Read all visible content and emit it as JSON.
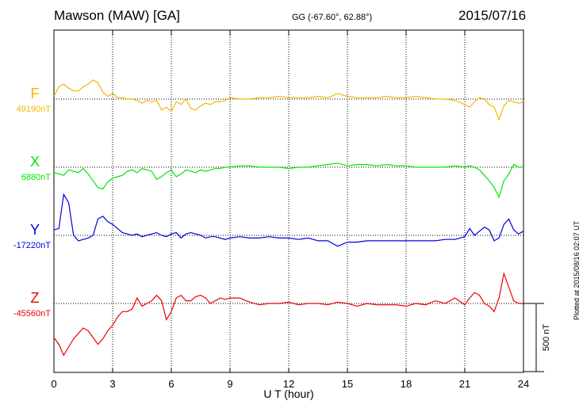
{
  "header": {
    "station": "Mawson (MAW)  [GA]",
    "coordinates": "GG (-67.60°,  62.88°)",
    "date": "2015/07/16"
  },
  "footer": {
    "plotted": "Plotted at 2015/08/16 02:07 UT"
  },
  "chart_data": {
    "type": "line",
    "title": "Mawson (MAW)  [GA]",
    "xlabel": "U T (hour)",
    "xlim": [
      0,
      24
    ],
    "x_ticks": [
      "0",
      "3",
      "6",
      "9",
      "12",
      "15",
      "18",
      "21",
      "24"
    ],
    "grid": true,
    "scale_bar": {
      "label": "500 nT",
      "value_nT": 500
    },
    "x": [
      0,
      0.25,
      0.5,
      0.75,
      1,
      1.25,
      1.5,
      1.75,
      2,
      2.25,
      2.5,
      2.75,
      3,
      3.25,
      3.5,
      3.75,
      4,
      4.25,
      4.5,
      4.75,
      5,
      5.25,
      5.5,
      5.75,
      6,
      6.25,
      6.5,
      6.75,
      7,
      7.25,
      7.5,
      7.75,
      8,
      8.25,
      8.5,
      8.75,
      9,
      9.5,
      10,
      10.5,
      11,
      11.5,
      12,
      12.5,
      13,
      13.5,
      14,
      14.5,
      15,
      15.5,
      16,
      16.5,
      17,
      17.5,
      18,
      18.5,
      19,
      19.5,
      20,
      20.5,
      21,
      21.25,
      21.5,
      21.75,
      22,
      22.25,
      22.5,
      22.75,
      23,
      23.25,
      23.5,
      23.75,
      24
    ],
    "series": [
      {
        "name": "F",
        "baseline_label": "49190nT",
        "color": "#f7b500",
        "values": [
          20,
          90,
          110,
          80,
          60,
          60,
          90,
          110,
          140,
          120,
          50,
          20,
          40,
          10,
          10,
          0,
          0,
          -10,
          -30,
          -10,
          -20,
          -10,
          -80,
          -60,
          -90,
          -20,
          -40,
          0,
          -70,
          -80,
          -50,
          -30,
          -40,
          -20,
          -20,
          -10,
          10,
          0,
          0,
          10,
          10,
          20,
          10,
          10,
          10,
          20,
          10,
          40,
          20,
          10,
          10,
          10,
          20,
          10,
          10,
          20,
          10,
          0,
          0,
          -10,
          -40,
          -60,
          -20,
          10,
          0,
          -40,
          -60,
          -150,
          -50,
          -10,
          -20,
          -30,
          -20
        ]
      },
      {
        "name": "X",
        "baseline_label": "6880nT",
        "color": "#00e600",
        "values": [
          -40,
          -50,
          -60,
          -20,
          -30,
          -40,
          -10,
          -50,
          -100,
          -150,
          -160,
          -110,
          -80,
          -70,
          -60,
          -30,
          -20,
          -40,
          -10,
          -20,
          -30,
          -90,
          -70,
          -40,
          -20,
          -70,
          -50,
          -20,
          -30,
          -40,
          -20,
          -30,
          -20,
          -10,
          -10,
          0,
          0,
          10,
          10,
          0,
          0,
          0,
          -10,
          0,
          0,
          10,
          20,
          30,
          10,
          20,
          20,
          10,
          20,
          10,
          10,
          0,
          0,
          0,
          0,
          10,
          0,
          10,
          0,
          -20,
          -60,
          -100,
          -150,
          -220,
          -100,
          -50,
          20,
          0,
          0
        ]
      },
      {
        "name": "Y",
        "baseline_label": "-17220nT",
        "color": "#0000dd",
        "values": [
          40,
          50,
          300,
          240,
          0,
          -40,
          -30,
          -20,
          0,
          120,
          140,
          100,
          80,
          50,
          20,
          10,
          0,
          10,
          -10,
          0,
          10,
          20,
          0,
          -10,
          10,
          20,
          -20,
          10,
          20,
          10,
          0,
          -20,
          -10,
          -10,
          -20,
          -30,
          -20,
          -10,
          -20,
          -20,
          -10,
          -20,
          -20,
          -30,
          -20,
          -40,
          -40,
          -80,
          -50,
          -50,
          -40,
          -40,
          -40,
          -40,
          -40,
          -40,
          -40,
          -40,
          -30,
          -30,
          -10,
          50,
          0,
          30,
          60,
          40,
          -40,
          -20,
          80,
          120,
          40,
          10,
          30
        ]
      },
      {
        "name": "Z",
        "baseline_label": "-45560nT",
        "color": "#ee0000",
        "values": [
          -250,
          -300,
          -380,
          -320,
          -260,
          -220,
          -180,
          -200,
          -250,
          -300,
          -260,
          -200,
          -160,
          -100,
          -60,
          -60,
          -40,
          40,
          -20,
          0,
          20,
          60,
          20,
          -120,
          -60,
          40,
          60,
          20,
          20,
          50,
          60,
          40,
          0,
          20,
          40,
          30,
          40,
          40,
          10,
          -10,
          0,
          0,
          10,
          -10,
          0,
          0,
          -10,
          10,
          0,
          -20,
          0,
          -10,
          -10,
          -10,
          -20,
          0,
          -10,
          20,
          0,
          40,
          -10,
          40,
          80,
          60,
          0,
          -20,
          -60,
          40,
          220,
          120,
          20,
          0,
          0
        ]
      }
    ]
  }
}
